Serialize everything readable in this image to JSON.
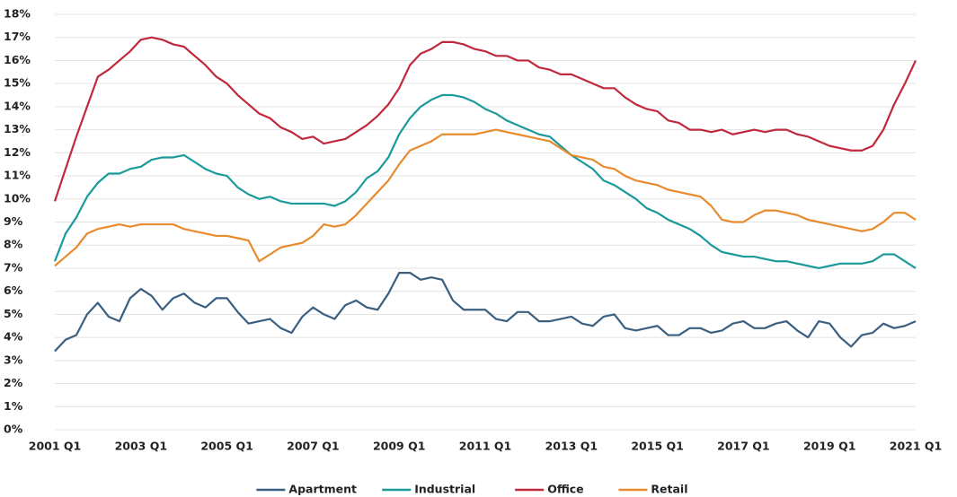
{
  "chart_data": {
    "type": "line",
    "categories": [
      "2001 Q1",
      null,
      null,
      null,
      null,
      null,
      null,
      null,
      "2003 Q1",
      null,
      null,
      null,
      null,
      null,
      null,
      null,
      "2005 Q1",
      null,
      null,
      null,
      null,
      null,
      null,
      null,
      "2007 Q1",
      null,
      null,
      null,
      null,
      null,
      null,
      null,
      "2009 Q1",
      null,
      null,
      null,
      null,
      null,
      null,
      null,
      "2011 Q1",
      null,
      null,
      null,
      null,
      null,
      null,
      null,
      "2013 Q1",
      null,
      null,
      null,
      null,
      null,
      null,
      null,
      "2015 Q1",
      null,
      null,
      null,
      null,
      null,
      null,
      null,
      "2017 Q1",
      null,
      null,
      null,
      null,
      null,
      null,
      null,
      "2019 Q1",
      null,
      null,
      null,
      null,
      null,
      null,
      null,
      "2021 Q1"
    ],
    "ylim": [
      0,
      18
    ],
    "yticks": [
      {
        "value": 0,
        "label": "0%"
      },
      {
        "value": 1,
        "label": "1%"
      },
      {
        "value": 2,
        "label": "2%"
      },
      {
        "value": 3,
        "label": "3%"
      },
      {
        "value": 4,
        "label": "4%"
      },
      {
        "value": 5,
        "label": "5%"
      },
      {
        "value": 6,
        "label": "6%"
      },
      {
        "value": 7,
        "label": "7%"
      },
      {
        "value": 8,
        "label": "8%"
      },
      {
        "value": 9,
        "label": "9%"
      },
      {
        "value": 10,
        "label": "10%"
      },
      {
        "value": 11,
        "label": "11%"
      },
      {
        "value": 12,
        "label": "12%"
      },
      {
        "value": 13,
        "label": "13%"
      },
      {
        "value": 14,
        "label": "14%"
      },
      {
        "value": 15,
        "label": "15%"
      },
      {
        "value": 16,
        "label": "16%"
      },
      {
        "value": 17,
        "label": "17%"
      },
      {
        "value": 18,
        "label": "18%"
      }
    ],
    "grid": true,
    "legend": "bottom",
    "series": [
      {
        "name": "Apartment",
        "color": "#3a5f80",
        "values": [
          3.4,
          3.9,
          4.1,
          5.0,
          5.5,
          4.9,
          4.7,
          5.7,
          6.1,
          5.8,
          5.2,
          5.7,
          5.9,
          5.5,
          5.3,
          5.7,
          5.7,
          5.1,
          4.6,
          4.7,
          4.8,
          4.4,
          4.2,
          4.9,
          5.3,
          5.0,
          4.8,
          5.4,
          5.6,
          5.3,
          5.2,
          5.9,
          6.8,
          6.8,
          6.5,
          6.6,
          6.5,
          5.6,
          5.2,
          5.2,
          5.2,
          4.8,
          4.7,
          5.1,
          5.1,
          4.7,
          4.7,
          4.8,
          4.9,
          4.6,
          4.5,
          4.9,
          5.0,
          4.4,
          4.3,
          4.4,
          4.5,
          4.1,
          4.1,
          4.4,
          4.4,
          4.2,
          4.3,
          4.6,
          4.7,
          4.4,
          4.4,
          4.6,
          4.7,
          4.3,
          4.0,
          4.7,
          4.6,
          4.0,
          3.6,
          4.1,
          4.2,
          4.6,
          4.4,
          4.5,
          4.7
        ]
      },
      {
        "name": "Industrial",
        "color": "#1b9a9c",
        "values": [
          7.3,
          8.5,
          9.2,
          10.1,
          10.7,
          11.1,
          11.1,
          11.3,
          11.4,
          11.7,
          11.8,
          11.8,
          11.9,
          11.6,
          11.3,
          11.1,
          11.0,
          10.5,
          10.2,
          10.0,
          10.1,
          9.9,
          9.8,
          9.8,
          9.8,
          9.8,
          9.7,
          9.9,
          10.3,
          10.9,
          11.2,
          11.8,
          12.8,
          13.5,
          14.0,
          14.3,
          14.5,
          14.5,
          14.4,
          14.2,
          13.9,
          13.7,
          13.4,
          13.2,
          13.0,
          12.8,
          12.7,
          12.3,
          11.9,
          11.6,
          11.3,
          10.8,
          10.6,
          10.3,
          10.0,
          9.6,
          9.4,
          9.1,
          8.9,
          8.7,
          8.4,
          8.0,
          7.7,
          7.6,
          7.5,
          7.5,
          7.4,
          7.3,
          7.3,
          7.2,
          7.1,
          7.0,
          7.1,
          7.2,
          7.2,
          7.2,
          7.3,
          7.6,
          7.6,
          7.3,
          7.0
        ]
      },
      {
        "name": "Office",
        "color": "#c0283c",
        "values": [
          9.9,
          11.3,
          12.7,
          14.0,
          15.3,
          15.6,
          16.0,
          16.4,
          16.9,
          17.0,
          16.9,
          16.7,
          16.6,
          16.2,
          15.8,
          15.3,
          15.0,
          14.5,
          14.1,
          13.7,
          13.5,
          13.1,
          12.9,
          12.6,
          12.7,
          12.4,
          12.5,
          12.6,
          12.9,
          13.2,
          13.6,
          14.1,
          14.8,
          15.8,
          16.3,
          16.5,
          16.8,
          16.8,
          16.7,
          16.5,
          16.4,
          16.2,
          16.2,
          16.0,
          16.0,
          15.7,
          15.6,
          15.4,
          15.4,
          15.2,
          15.0,
          14.8,
          14.8,
          14.4,
          14.1,
          13.9,
          13.8,
          13.4,
          13.3,
          13.0,
          13.0,
          12.9,
          13.0,
          12.8,
          12.9,
          13.0,
          12.9,
          13.0,
          13.0,
          12.8,
          12.7,
          12.5,
          12.3,
          12.2,
          12.1,
          12.1,
          12.3,
          13.0,
          14.1,
          15.0,
          16.0
        ]
      },
      {
        "name": "Retail",
        "color": "#e88a2e",
        "values": [
          7.1,
          7.5,
          7.9,
          8.5,
          8.7,
          8.8,
          8.9,
          8.8,
          8.9,
          8.9,
          8.9,
          8.9,
          8.7,
          8.6,
          8.5,
          8.4,
          8.4,
          8.3,
          8.2,
          7.3,
          7.6,
          7.9,
          8.0,
          8.1,
          8.4,
          8.9,
          8.8,
          8.9,
          9.3,
          9.8,
          10.3,
          10.8,
          11.5,
          12.1,
          12.3,
          12.5,
          12.8,
          12.8,
          12.8,
          12.8,
          12.9,
          13.0,
          12.9,
          12.8,
          12.7,
          12.6,
          12.5,
          12.2,
          11.9,
          11.8,
          11.7,
          11.4,
          11.3,
          11.0,
          10.8,
          10.7,
          10.6,
          10.4,
          10.3,
          10.2,
          10.1,
          9.7,
          9.1,
          9.0,
          9.0,
          9.3,
          9.5,
          9.5,
          9.4,
          9.3,
          9.1,
          9.0,
          8.9,
          8.8,
          8.7,
          8.6,
          8.7,
          9.0,
          9.4,
          9.4,
          9.1
        ]
      }
    ]
  }
}
